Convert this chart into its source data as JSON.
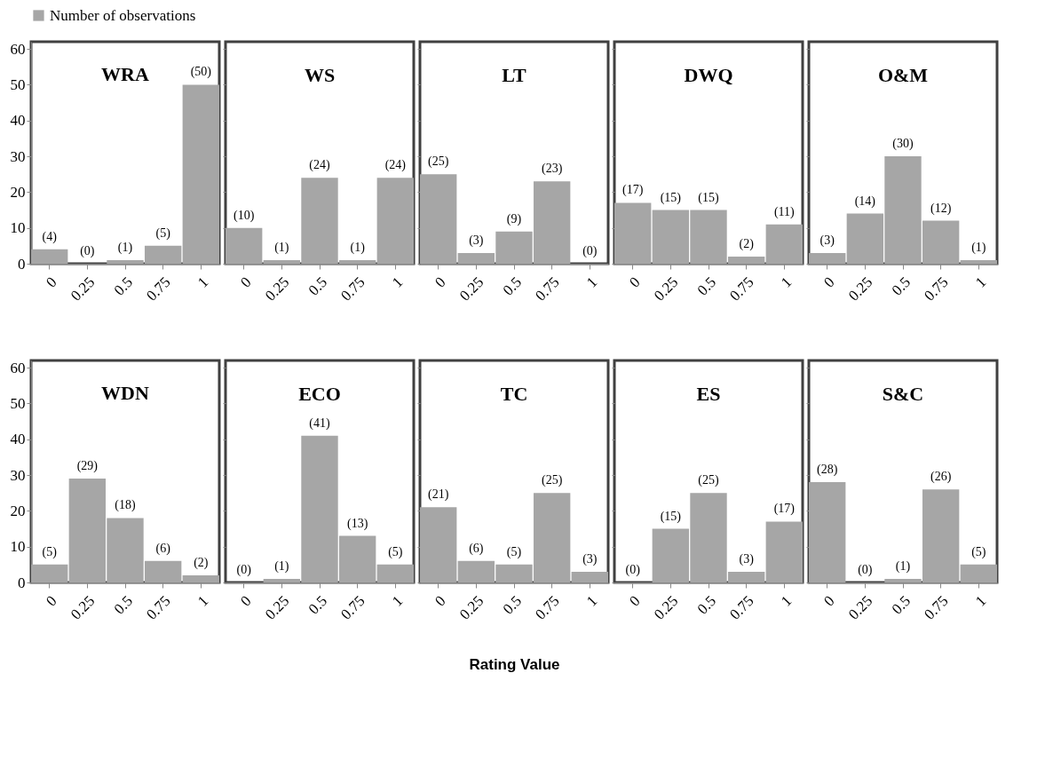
{
  "chart_data": [
    {
      "type": "bar",
      "title": "WRA",
      "categories": [
        "0",
        "0.25",
        "0.5",
        "0.75",
        "1"
      ],
      "series": [
        {
          "name": "Number of observations",
          "color": "#a6a6a6",
          "values": [
            4,
            0,
            1,
            5,
            50
          ],
          "value_labels": [
            "(4)",
            "(0)",
            "(1)",
            "(5)",
            "(50)"
          ]
        }
      ],
      "legend": "top",
      "ylim": [
        0,
        62
      ],
      "yticks": [
        0,
        10,
        20,
        30,
        40,
        50,
        60
      ]
    },
    {
      "type": "bar",
      "title": "WS",
      "categories": [
        "0",
        "0.25",
        "0.5",
        "0.75",
        "1"
      ],
      "values": [
        10,
        1,
        24,
        1,
        24
      ],
      "value_labels": [
        "(10)",
        "(1)",
        "(24)",
        "(1)",
        "(24)"
      ],
      "color": "#a6a6a6",
      "ylim": [
        0,
        62
      ],
      "yticks": [
        0,
        10,
        20,
        30,
        40,
        50,
        60
      ],
      "tick_labels": "x"
    },
    {
      "type": "bar",
      "title": "LT",
      "categories": [
        "0",
        "0.25",
        "0.5",
        "0.75",
        "1"
      ],
      "values": [
        25,
        3,
        9,
        23,
        0
      ],
      "value_labels": [
        "(25)",
        "(3)",
        "(9)",
        "(23)",
        "(0)"
      ],
      "color": "#a6a6a6",
      "ylim": [
        0,
        62
      ],
      "yticks": [
        0,
        10,
        20,
        30,
        40,
        50,
        60
      ],
      "tick_labels": "x"
    },
    {
      "type": "bar",
      "title": "DWQ",
      "categories": [
        "0",
        "0.25",
        "0.5",
        "0.75",
        "1"
      ],
      "values": [
        17,
        15,
        15,
        2,
        11
      ],
      "value_labels": [
        "(17)",
        "(15)",
        "(15)",
        "(2)",
        "(11)"
      ],
      "color": "#a6a6a6",
      "ylim": [
        0,
        62
      ],
      "yticks": [
        0,
        10,
        20,
        30,
        40,
        50,
        60
      ],
      "tick_labels": "x"
    },
    {
      "type": "bar",
      "title": "O&M",
      "categories": [
        "0",
        "0.25",
        "0.5",
        "0.75",
        "1"
      ],
      "values": [
        3,
        14,
        30,
        12,
        1
      ],
      "value_labels": [
        "(3)",
        "(14)",
        "(30)",
        "(12)",
        "(1)"
      ],
      "color": "#a6a6a6",
      "ylim": [
        0,
        62
      ],
      "yticks": [
        0,
        10,
        20,
        30,
        40,
        50,
        60
      ],
      "tick_labels": "x"
    },
    {
      "type": "bar",
      "title": "WDN",
      "categories": [
        "0",
        "0.25",
        "0.5",
        "0.75",
        "1"
      ],
      "values": [
        5,
        29,
        18,
        6,
        2
      ],
      "value_labels": [
        "(5)",
        "(29)",
        "(18)",
        "(6)",
        "(2)"
      ],
      "color": "#a6a6a6",
      "ylim": [
        0,
        62
      ],
      "yticks": [
        0,
        10,
        20,
        30,
        40,
        50,
        60
      ]
    },
    {
      "type": "bar",
      "title": "ECO",
      "categories": [
        "0",
        "0.25",
        "0.5",
        "0.75",
        "1"
      ],
      "values": [
        0,
        1,
        41,
        13,
        5
      ],
      "value_labels": [
        "(0)",
        "(1)",
        "(41)",
        "(13)",
        "(5)"
      ],
      "color": "#a6a6a6",
      "ylim": [
        0,
        62
      ],
      "yticks": [
        0,
        10,
        20,
        30,
        40,
        50,
        60
      ],
      "tick_labels": "x"
    },
    {
      "type": "bar",
      "title": "TC",
      "categories": [
        "0",
        "0.25",
        "0.5",
        "0.75",
        "1"
      ],
      "values": [
        21,
        6,
        5,
        25,
        3
      ],
      "value_labels": [
        "(21)",
        "(6)",
        "(5)",
        "(25)",
        "(3)"
      ],
      "color": "#a6a6a6",
      "ylim": [
        0,
        62
      ],
      "yticks": [
        0,
        10,
        20,
        30,
        40,
        50,
        60
      ],
      "tick_labels": "x",
      "xlabel": "Rating Value"
    },
    {
      "type": "bar",
      "title": "ES",
      "categories": [
        "0",
        "0.25",
        "0.5",
        "0.75",
        "1"
      ],
      "values": [
        0,
        15,
        25,
        3,
        17
      ],
      "value_labels": [
        "(0)",
        "(15)",
        "(25)",
        "(3)",
        "(17)"
      ],
      "color": "#a6a6a6",
      "ylim": [
        0,
        62
      ],
      "yticks": [
        0,
        10,
        20,
        30,
        40,
        50,
        60
      ],
      "tick_labels": "x"
    },
    {
      "type": "bar",
      "title": "S&C",
      "categories": [
        "0",
        "0.25",
        "0.5",
        "0.75",
        "1"
      ],
      "values": [
        28,
        0,
        1,
        26,
        5
      ],
      "value_labels": [
        "(28)",
        "(0)",
        "(1)",
        "(26)",
        "(5)"
      ],
      "color": "#a6a6a6",
      "ylim": [
        0,
        62
      ],
      "yticks": [
        0,
        10,
        20,
        30,
        40,
        50,
        60
      ],
      "tick_labels": "x"
    }
  ]
}
